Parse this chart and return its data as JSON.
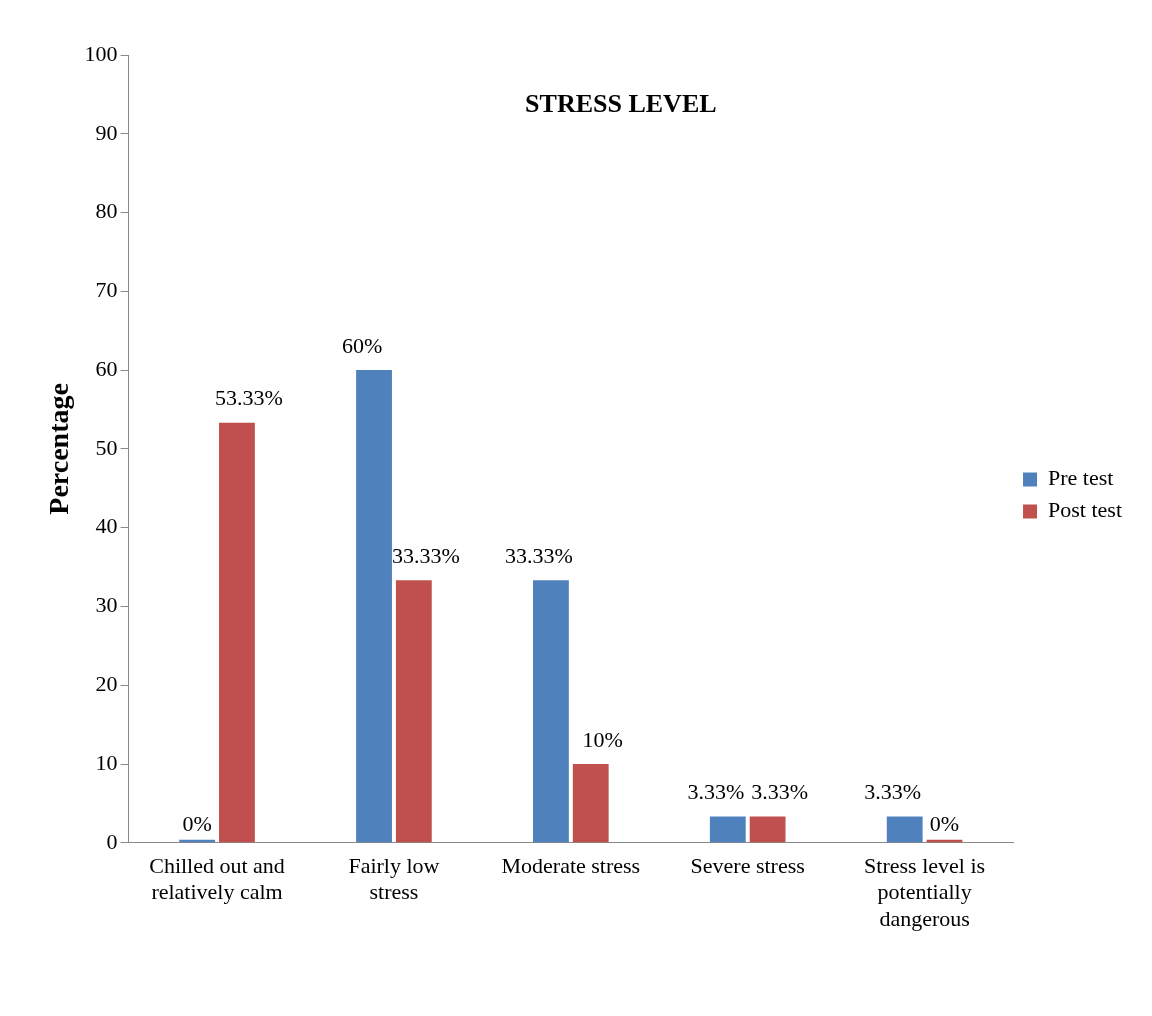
{
  "chart_data": {
    "type": "bar",
    "title": "STRESS LEVEL",
    "ylabel": "Percentage",
    "categories": [
      "Chilled out and relatively calm",
      "Fairly low stress",
      "Moderate stress",
      "Severe stress",
      "Stress level is potentially dangerous"
    ],
    "series": [
      {
        "name": "Pre test",
        "color": "#4f81bd",
        "values": [
          0,
          60,
          33.33,
          3.33,
          3.33
        ],
        "value_labels": [
          "0%",
          "60%",
          "33.33%",
          "3.33%",
          "3.33%"
        ]
      },
      {
        "name": "Post test",
        "color": "#c0504d",
        "values": [
          53.33,
          33.33,
          10,
          3.33,
          0
        ],
        "value_labels": [
          "53.33%",
          "33.33%",
          "10%",
          "3.33%",
          "0%"
        ]
      }
    ],
    "ylim": [
      0,
      100
    ],
    "yticks": [
      0,
      10,
      20,
      30,
      40,
      50,
      60,
      70,
      80,
      90,
      100
    ],
    "grid": false,
    "legend": "right"
  }
}
